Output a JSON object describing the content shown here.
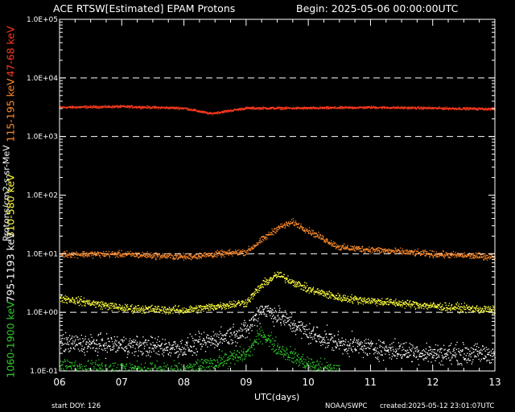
{
  "header": {
    "title": "ACE RTSW[Estimated] EPAM Protons",
    "begin": "Begin: 2025-05-06 00:00:00UTC"
  },
  "footer": {
    "start_doy": "start DOY:  126",
    "source": "NOAA/SWPC",
    "created": "created:2025-05-12 23:01:07UTC"
  },
  "chart_data": {
    "type": "scatter",
    "title": "ACE RTSW[Estimated] EPAM Protons",
    "xlabel": "UTC(days)",
    "ylabel": "Protons/cm2-s-sr-MeV",
    "xscale": "time (days)",
    "xlim": [
      "2025-05-06T00:00",
      "2025-05-13T00:00"
    ],
    "x_ticks": [
      "06",
      "07",
      "08",
      "09",
      "10",
      "11",
      "12",
      "13"
    ],
    "yscale": "log",
    "ylim": [
      0.1,
      100000
    ],
    "y_ticks": [
      "1.0E-01",
      "1.0E+00",
      "1.0E+01",
      "1.0E+02",
      "1.0E+03",
      "1.0E+04",
      "1.0E+05"
    ],
    "dashed_reference_lines": [
      1,
      10,
      1000,
      10000
    ],
    "series": [
      {
        "name": "47-68 keV",
        "color": "#ff3a1e",
        "profile": [
          [
            "05-06",
            3200
          ],
          [
            "05-07",
            3300
          ],
          [
            "05-08",
            3100
          ],
          [
            "05-08 10:00",
            2500
          ],
          [
            "05-09",
            3100
          ],
          [
            "05-10",
            3100
          ],
          [
            "05-11",
            3200
          ],
          [
            "05-12",
            3100
          ],
          [
            "05-13",
            3000
          ]
        ]
      },
      {
        "name": "115-195 keV",
        "color": "#ff8a2a",
        "profile": [
          [
            "05-06",
            10
          ],
          [
            "05-07",
            10
          ],
          [
            "05-08",
            9
          ],
          [
            "05-09",
            11
          ],
          [
            "05-09 12:00",
            28
          ],
          [
            "05-09 18:00",
            35
          ],
          [
            "05-10",
            25
          ],
          [
            "05-10 12:00",
            13
          ],
          [
            "05-11",
            12
          ],
          [
            "05-12",
            10
          ],
          [
            "05-13",
            9
          ]
        ]
      },
      {
        "name": "310-580 keV",
        "color": "#ffff3c",
        "profile": [
          [
            "05-06",
            1.8
          ],
          [
            "05-07",
            1.2
          ],
          [
            "05-08",
            1.1
          ],
          [
            "05-09",
            1.5
          ],
          [
            "05-09 06:00",
            3
          ],
          [
            "05-09 12:00",
            4.5
          ],
          [
            "05-10",
            2.5
          ],
          [
            "05-10 12:00",
            1.8
          ],
          [
            "05-11",
            1.6
          ],
          [
            "05-12",
            1.3
          ],
          [
            "05-13",
            1.1
          ]
        ]
      },
      {
        "name": "795-1193 keV",
        "color": "#ffffff",
        "profile": [
          [
            "05-06",
            0.3
          ],
          [
            "05-07",
            0.28
          ],
          [
            "05-08",
            0.25
          ],
          [
            "05-09",
            0.5
          ],
          [
            "05-09 06:00",
            1.2
          ],
          [
            "05-09 12:00",
            0.9
          ],
          [
            "05-10",
            0.45
          ],
          [
            "05-10 12:00",
            0.3
          ],
          [
            "05-11",
            0.25
          ],
          [
            "05-12",
            0.2
          ],
          [
            "05-13",
            0.2
          ]
        ]
      },
      {
        "name": "1060-1900 keV",
        "color": "#2fcc2a",
        "profile": [
          [
            "05-06",
            0.12
          ],
          [
            "05-07",
            0.11
          ],
          [
            "05-08",
            0.1
          ],
          [
            "05-09",
            0.2
          ],
          [
            "05-09 06:00",
            0.45
          ],
          [
            "05-09 12:00",
            0.25
          ],
          [
            "05-10",
            0.13
          ],
          [
            "05-10 12:00",
            0.1
          ]
        ]
      }
    ]
  }
}
